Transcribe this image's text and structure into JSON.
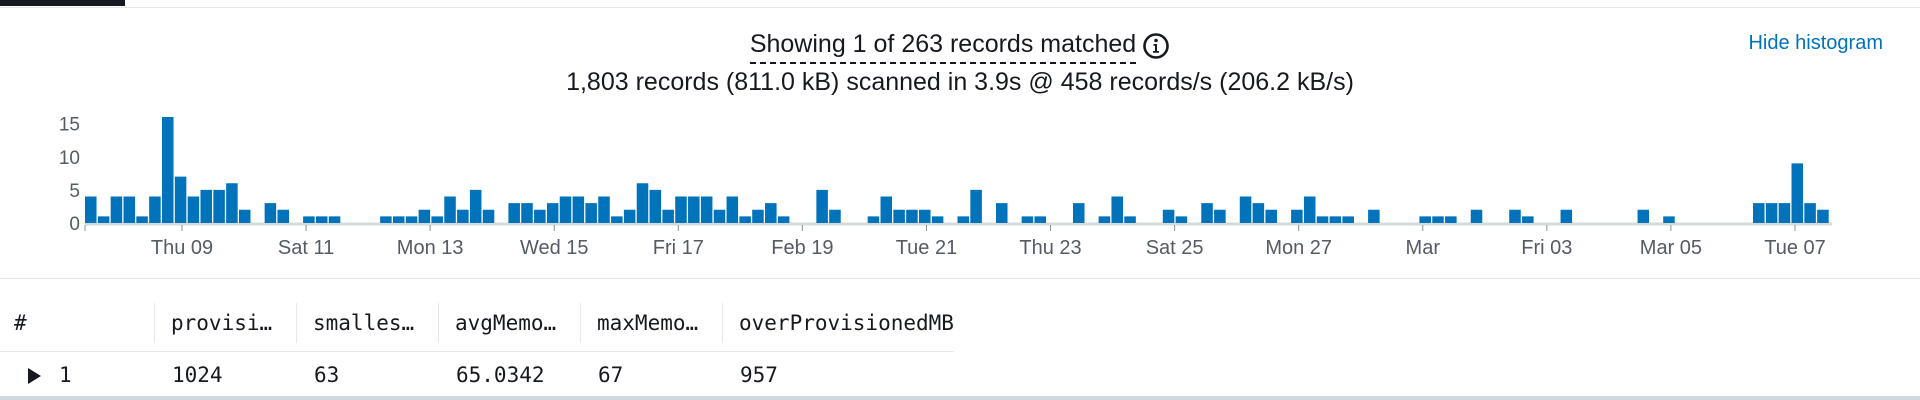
{
  "summary": {
    "matched": "Showing 1 of 263 records matched",
    "scanned": "1,803 records (811.0 kB) scanned in 3.9s @ 458 records/s (206.2 kB/s)"
  },
  "actions": {
    "hide_histogram": "Hide histogram"
  },
  "colors": {
    "bar": "#0073bb",
    "link": "#0073bb",
    "text": "#16191f",
    "axis": "#d5dbdb"
  },
  "chart_data": {
    "type": "bar",
    "ylim": [
      0,
      16
    ],
    "y_ticks": [
      "15",
      "10",
      "5",
      "0"
    ],
    "x_ticks": [
      "Thu 09",
      "Sat 11",
      "Mon 13",
      "Wed 15",
      "Fri 17",
      "Feb 19",
      "Tue 21",
      "Thu 23",
      "Sat 25",
      "Mon 27",
      "Mar",
      "Fri 03",
      "Mar 05",
      "Tue 07"
    ],
    "values": [
      4,
      1,
      4,
      4,
      1,
      4,
      16,
      7,
      4,
      5,
      5,
      6,
      2,
      0,
      3,
      2,
      0,
      1,
      1,
      1,
      0,
      0,
      0,
      1,
      1,
      1,
      2,
      1,
      4,
      2,
      5,
      2,
      0,
      3,
      3,
      2,
      3,
      4,
      4,
      3,
      4,
      1,
      2,
      6,
      5,
      2,
      4,
      4,
      4,
      2,
      4,
      1,
      2,
      3,
      1,
      0,
      0,
      5,
      2,
      0,
      0,
      1,
      4,
      2,
      2,
      2,
      1,
      0,
      1,
      5,
      0,
      3,
      0,
      1,
      1,
      0,
      0,
      3,
      0,
      1,
      4,
      1,
      0,
      0,
      2,
      1,
      0,
      3,
      2,
      0,
      4,
      3,
      2,
      0,
      2,
      4,
      1,
      1,
      1,
      0,
      2,
      0,
      0,
      0,
      1,
      1,
      1,
      0,
      2,
      0,
      0,
      2,
      1,
      0,
      0,
      2,
      0,
      0,
      0,
      0,
      0,
      2,
      0,
      1,
      0,
      0,
      0,
      0,
      0,
      0,
      3,
      3,
      3,
      9,
      3,
      2
    ]
  },
  "table": {
    "headers": [
      "#",
      "provisi…",
      "smalles…",
      "avgMemo…",
      "maxMemo…",
      "overProvisionedMB"
    ],
    "rows": [
      {
        "index": "1",
        "provisioned": "1024",
        "smallest": "63",
        "avg": "65.0342",
        "max": "67",
        "over": "957"
      }
    ]
  }
}
